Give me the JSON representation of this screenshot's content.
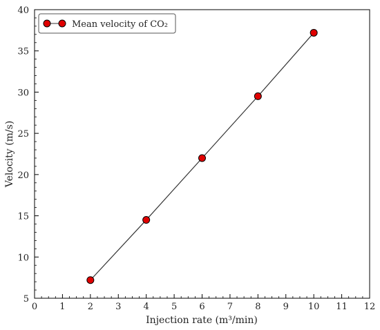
{
  "chart_data": {
    "type": "line",
    "title": "",
    "xlabel": "Injection rate (m³/min)",
    "ylabel": "Velocity (m/s)",
    "xlim": [
      0,
      12
    ],
    "ylim": [
      5,
      40
    ],
    "xticks": [
      0,
      1,
      2,
      3,
      4,
      5,
      6,
      7,
      8,
      9,
      10,
      11,
      12
    ],
    "yticks": [
      5,
      10,
      15,
      20,
      25,
      30,
      35,
      40
    ],
    "grid": false,
    "legend_position": "top-left",
    "series": [
      {
        "name": "Mean velocity of CO₂",
        "x": [
          2,
          4,
          6,
          8,
          10
        ],
        "y": [
          7.2,
          14.5,
          22.0,
          29.5,
          37.2
        ],
        "line_color": "#333333",
        "marker_color": "#e00000",
        "marker_edge": "#000000"
      }
    ]
  }
}
